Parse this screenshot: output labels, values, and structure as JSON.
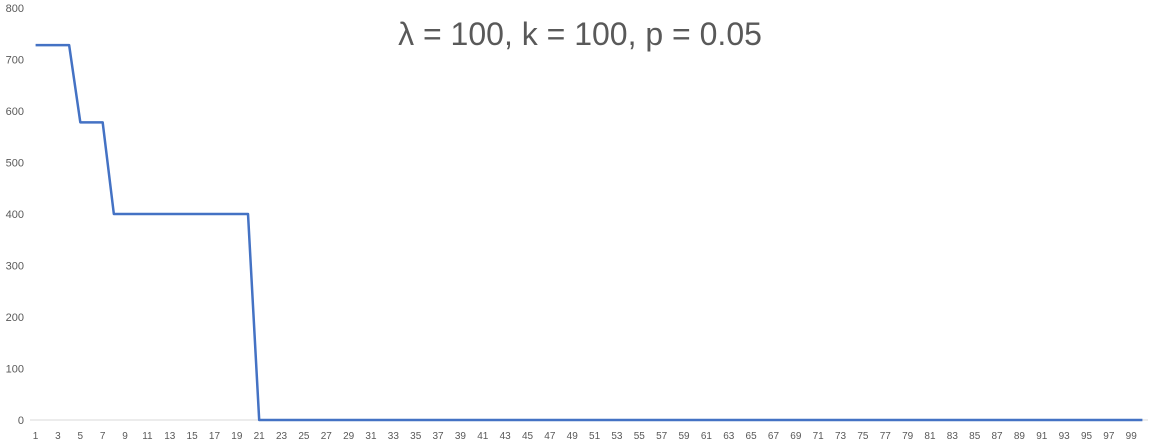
{
  "chart_data": {
    "type": "line",
    "title": "λ = 100, k = 100, p = 0.05",
    "xlabel": "",
    "ylabel": "",
    "ylim": [
      0,
      800
    ],
    "yticks": [
      0,
      100,
      200,
      300,
      400,
      500,
      600,
      700,
      800
    ],
    "x": [
      1,
      2,
      3,
      4,
      5,
      6,
      7,
      8,
      9,
      10,
      11,
      12,
      13,
      14,
      15,
      16,
      17,
      18,
      19,
      20,
      21,
      22,
      23,
      24,
      25,
      26,
      27,
      28,
      29,
      30,
      31,
      32,
      33,
      34,
      35,
      36,
      37,
      38,
      39,
      40,
      41,
      42,
      43,
      44,
      45,
      46,
      47,
      48,
      49,
      50,
      51,
      52,
      53,
      54,
      55,
      56,
      57,
      58,
      59,
      60,
      61,
      62,
      63,
      64,
      65,
      66,
      67,
      68,
      69,
      70,
      71,
      72,
      73,
      74,
      75,
      76,
      77,
      78,
      79,
      80,
      81,
      82,
      83,
      84,
      85,
      86,
      87,
      88,
      89,
      90,
      91,
      92,
      93,
      94,
      95,
      96,
      97,
      98,
      99,
      100
    ],
    "x_tick_labels": [
      1,
      3,
      5,
      7,
      9,
      11,
      13,
      15,
      17,
      19,
      21,
      23,
      25,
      27,
      29,
      31,
      33,
      35,
      37,
      39,
      41,
      43,
      45,
      47,
      49,
      51,
      53,
      55,
      57,
      59,
      61,
      63,
      65,
      67,
      69,
      71,
      73,
      75,
      77,
      79,
      81,
      83,
      85,
      87,
      89,
      91,
      93,
      95,
      97,
      99
    ],
    "series": [
      {
        "values": [
          728,
          728,
          728,
          728,
          578,
          578,
          578,
          400,
          400,
          400,
          400,
          400,
          400,
          400,
          400,
          400,
          400,
          400,
          400,
          400,
          0,
          0,
          0,
          0,
          0,
          0,
          0,
          0,
          0,
          0,
          0,
          0,
          0,
          0,
          0,
          0,
          0,
          0,
          0,
          0,
          0,
          0,
          0,
          0,
          0,
          0,
          0,
          0,
          0,
          0,
          0,
          0,
          0,
          0,
          0,
          0,
          0,
          0,
          0,
          0,
          0,
          0,
          0,
          0,
          0,
          0,
          0,
          0,
          0,
          0,
          0,
          0,
          0,
          0,
          0,
          0,
          0,
          0,
          0,
          0,
          0,
          0,
          0,
          0,
          0,
          0,
          0,
          0,
          0,
          0,
          0,
          0,
          0,
          0,
          0,
          0,
          0,
          0,
          0,
          0
        ],
        "color": "#4472C4"
      }
    ],
    "grid": false,
    "legend": "none"
  }
}
